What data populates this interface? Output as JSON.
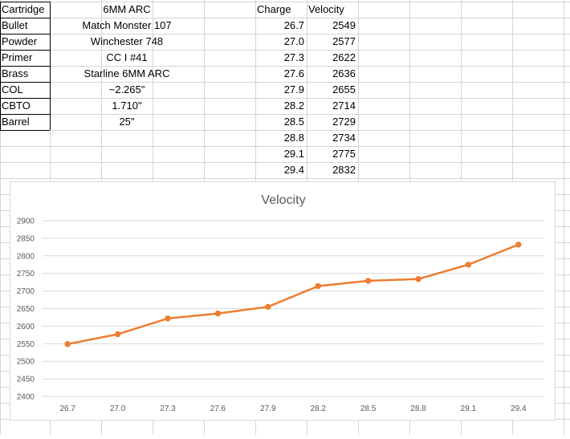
{
  "sheet": {
    "specs": [
      {
        "label": "Cartridge",
        "value": "6MM ARC"
      },
      {
        "label": "Bullet",
        "value": "Match Monster 107"
      },
      {
        "label": "Powder",
        "value": "Winchester 748"
      },
      {
        "label": "Primer",
        "value": "CC I #41"
      },
      {
        "label": "Brass",
        "value": "Starline 6MM ARC"
      },
      {
        "label": "COL",
        "value": "~2.265\""
      },
      {
        "label": "CBTO",
        "value": "1.710\""
      },
      {
        "label": "Barrel",
        "value": "25\""
      }
    ],
    "headers": {
      "charge": "Charge",
      "velocity": "Velocity"
    },
    "rows": [
      {
        "charge": "26.7",
        "velocity": "2549"
      },
      {
        "charge": "27.0",
        "velocity": "2577"
      },
      {
        "charge": "27.3",
        "velocity": "2622"
      },
      {
        "charge": "27.6",
        "velocity": "2636"
      },
      {
        "charge": "27.9",
        "velocity": "2655"
      },
      {
        "charge": "28.2",
        "velocity": "2714"
      },
      {
        "charge": "28.5",
        "velocity": "2729"
      },
      {
        "charge": "28.8",
        "velocity": "2734"
      },
      {
        "charge": "29.1",
        "velocity": "2775"
      },
      {
        "charge": "29.4",
        "velocity": "2832"
      }
    ]
  },
  "colors": {
    "series": "#ED7D31",
    "gridline": "#d9d9d9",
    "cellBorder": "#d4d4d4"
  },
  "chart_data": {
    "type": "line",
    "title": "Velocity",
    "categories": [
      "26.7",
      "27.0",
      "27.3",
      "27.6",
      "27.9",
      "28.2",
      "28.5",
      "28.8",
      "29.1",
      "29.4"
    ],
    "series": [
      {
        "name": "Velocity",
        "values": [
          2549,
          2577,
          2622,
          2636,
          2655,
          2714,
          2729,
          2734,
          2775,
          2832
        ]
      }
    ],
    "ylim": [
      2400,
      2900
    ],
    "yticks": [
      2400,
      2450,
      2500,
      2550,
      2600,
      2650,
      2700,
      2750,
      2800,
      2850,
      2900
    ],
    "grid": true,
    "legend": "none"
  }
}
